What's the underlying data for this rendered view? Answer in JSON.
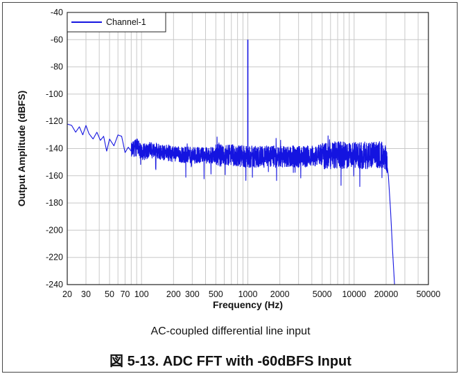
{
  "chart_data": {
    "type": "line",
    "xscale": "log",
    "xlim": [
      20,
      50000
    ],
    "ylim": [
      -240,
      -40
    ],
    "xticks": [
      20,
      30,
      50,
      70,
      100,
      200,
      300,
      500,
      1000,
      2000,
      5000,
      10000,
      20000,
      50000
    ],
    "xtick_labels": [
      "20",
      "30",
      "50",
      "70",
      "100",
      "200",
      "300",
      "500",
      "1000",
      "2000",
      "5000",
      "10000",
      "20000",
      "50000"
    ],
    "yticks": [
      -40,
      -60,
      -80,
      -100,
      -120,
      -140,
      -160,
      -180,
      -200,
      -220,
      -240
    ],
    "ytick_labels": [
      "-40",
      "-60",
      "-80",
      "-100",
      "-120",
      "-140",
      "-160",
      "-180",
      "-200",
      "-220",
      "-240"
    ],
    "xlabel": "Frequency (Hz)",
    "ylabel": "Output Amplitude (dBFS)",
    "grid": true,
    "legend": "top-left",
    "color": "#1414e0",
    "series": [
      {
        "name": "Channel-1",
        "tone": {
          "x": 1000,
          "y": -60
        },
        "x": [
          20,
          22,
          24,
          26,
          28,
          30,
          32,
          35,
          38,
          41,
          44,
          47,
          50,
          55,
          60,
          65,
          70,
          75,
          80,
          90,
          100,
          120,
          150,
          200,
          300,
          500,
          700,
          1000,
          1500,
          2000,
          3000,
          5000,
          7000,
          10000,
          15000,
          19000,
          20000,
          21000,
          22000,
          23000,
          24000
        ],
        "y": [
          -122,
          -123,
          -128,
          -124,
          -130,
          -123,
          -129,
          -133,
          -128,
          -134,
          -131,
          -142,
          -133,
          -138,
          -130,
          -131,
          -143,
          -139,
          -142,
          -138,
          -143,
          -141,
          -142,
          -144,
          -145,
          -145,
          -145,
          -146,
          -146,
          -146,
          -146,
          -145,
          -145,
          -145,
          -145,
          -144,
          -147,
          -160,
          -185,
          -215,
          -240
        ],
        "noise_band": [
          -155,
          -135
        ]
      }
    ]
  },
  "subtitle": "AC-coupled differential line input",
  "caption": "図 5-13. ADC FFT with -60dBFS Input"
}
